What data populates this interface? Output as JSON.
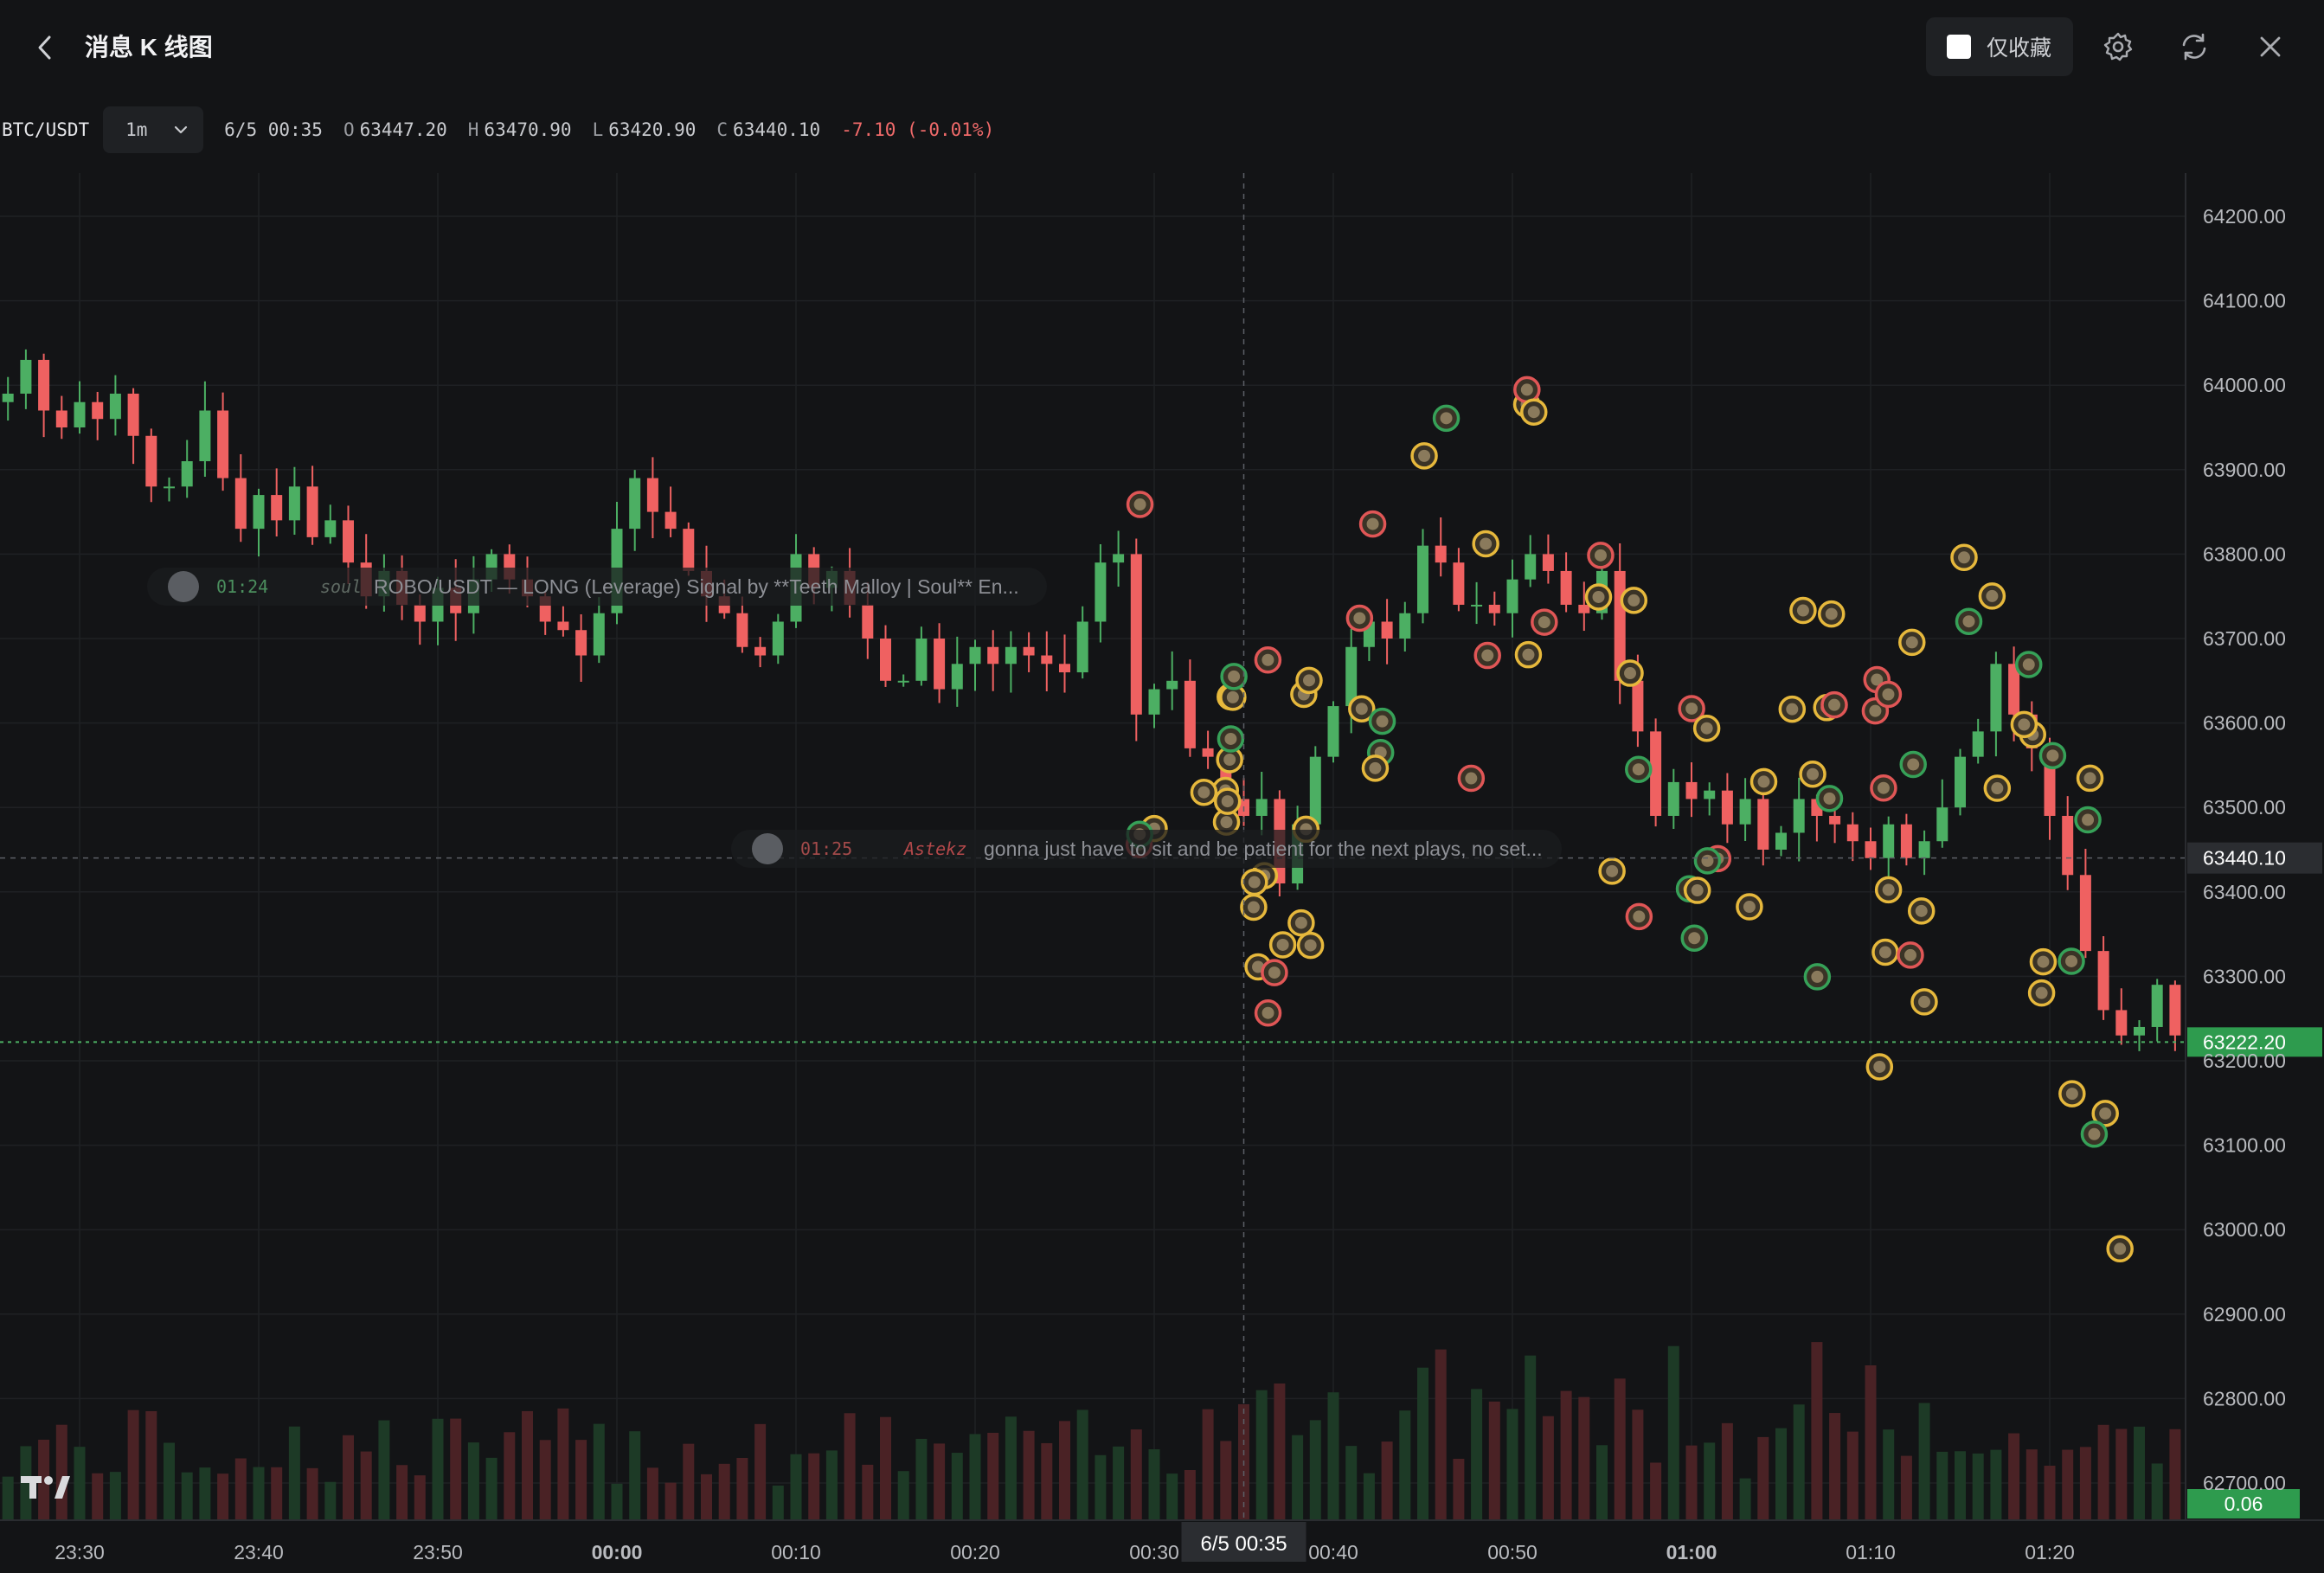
{
  "header": {
    "title": "消息 K 线图",
    "favorites_only_label": "仅收藏",
    "icons": [
      "back-chevron-icon",
      "gear-icon",
      "refresh-icon",
      "close-icon"
    ]
  },
  "ohlc": {
    "symbol": "BTC/USDT",
    "interval": "1m",
    "datetime": "6/5 00:35",
    "open_key": "O",
    "open": "63447.20",
    "high_key": "H",
    "high": "63470.90",
    "low_key": "L",
    "low": "63420.90",
    "close_key": "C",
    "close": "63440.10",
    "change": "-7.10 (-0.01%)"
  },
  "colors": {
    "background": "#131416",
    "up": "#4caf63",
    "down": "#ef6161",
    "marker_gold": "#e6b83c",
    "marker_red": "#e05656",
    "marker_green": "#36a158",
    "grid": "#1f2124"
  },
  "chart_data": {
    "type": "candlestick",
    "title": "",
    "ylim": [
      62670,
      64240
    ],
    "y_ticks": [
      "64200.00",
      "64100.00",
      "64000.00",
      "63900.00",
      "63800.00",
      "63700.00",
      "63600.00",
      "63500.00",
      "63400.00",
      "63300.00",
      "63200.00",
      "63100.00",
      "63000.00",
      "62900.00",
      "62800.00",
      "62700.00"
    ],
    "x_ticks": [
      {
        "t": -30,
        "label": "23:30",
        "bold": false
      },
      {
        "t": -20,
        "label": "23:40",
        "bold": false
      },
      {
        "t": -10,
        "label": "23:50",
        "bold": false
      },
      {
        "t": 0,
        "label": "00:00",
        "bold": true
      },
      {
        "t": 10,
        "label": "00:10",
        "bold": false
      },
      {
        "t": 20,
        "label": "00:20",
        "bold": false
      },
      {
        "t": 30,
        "label": "00:30",
        "bold": false
      },
      {
        "t": 40,
        "label": "00:40",
        "bold": false
      },
      {
        "t": 50,
        "label": "00:50",
        "bold": false
      },
      {
        "t": 60,
        "label": "01:00",
        "bold": true
      },
      {
        "t": 70,
        "label": "01:10",
        "bold": false
      },
      {
        "t": 80,
        "label": "01:20",
        "bold": false
      }
    ],
    "crosshair": {
      "t": 35,
      "time_label": "6/5 00:35",
      "price": 63440.1,
      "price_label": "63440.10"
    },
    "last_price": {
      "price": 63222.2,
      "label": "63222.20"
    },
    "volume_label": "0.06",
    "closes": [
      63990,
      64030,
      63970,
      63950,
      63980,
      63960,
      63990,
      63940,
      63880,
      63880,
      63910,
      63970,
      63890,
      63830,
      63870,
      63840,
      63880,
      63820,
      63840,
      63790,
      63750,
      63780,
      63740,
      63720,
      63760,
      63730,
      63770,
      63800,
      63770,
      63750,
      63720,
      63710,
      63680,
      63730,
      63830,
      63890,
      63850,
      63830,
      63780,
      63750,
      63730,
      63690,
      63680,
      63720,
      63800,
      63760,
      63780,
      63740,
      63700,
      63650,
      63650,
      63700,
      63640,
      63670,
      63690,
      63670,
      63690,
      63680,
      63670,
      63660,
      63720,
      63790,
      63800,
      63610,
      63640,
      63650,
      63570,
      63560,
      63510,
      63490,
      63510,
      63410,
      63480,
      63560,
      63620,
      63690,
      63720,
      63700,
      63730,
      63810,
      63790,
      63740,
      63740,
      63730,
      63770,
      63800,
      63780,
      63740,
      63730,
      63780,
      63650,
      63590,
      63490,
      63530,
      63510,
      63520,
      63480,
      63510,
      63450,
      63470,
      63510,
      63490,
      63480,
      63460,
      63440,
      63480,
      63440,
      63460,
      63500,
      63560,
      63590,
      63670,
      63610,
      63570,
      63490,
      63420,
      63330,
      63260,
      63230,
      63240,
      63290,
      63230,
      63190,
      63150,
      63190,
      63220
    ]
  },
  "messages": [
    {
      "time": "01:24",
      "user": "soul",
      "text": "ROBO/USDT — LONG (Leverage) Signal by **Teeth Malloy | Soul** En..."
    },
    {
      "time": "01:25",
      "user": "Astekz",
      "text": "gonna just have to sit and be patient for the next plays, no set..."
    }
  ]
}
